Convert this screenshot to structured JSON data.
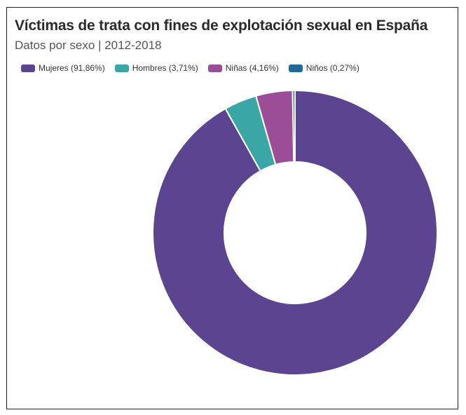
{
  "chart_data": {
    "type": "pie",
    "title": "Víctimas de trata con fines de explotación sexual en España",
    "subtitle": "Datos por sexo | 2012-2018",
    "legend_position": "top-left",
    "donut": true,
    "series": [
      {
        "name": "Mujeres",
        "label": "Mujeres (91,86%)",
        "value": 91.86,
        "color": "#5b4591"
      },
      {
        "name": "Hombres",
        "label": "Hombres (3,71%)",
        "value": 3.71,
        "color": "#3aa6a5"
      },
      {
        "name": "Niñas",
        "label": "Niñas (4,16%)",
        "value": 4.16,
        "color": "#9c4d98"
      },
      {
        "name": "Niños",
        "label": "Niños (0,27%)",
        "value": 0.27,
        "color": "#1f6a99"
      }
    ]
  }
}
